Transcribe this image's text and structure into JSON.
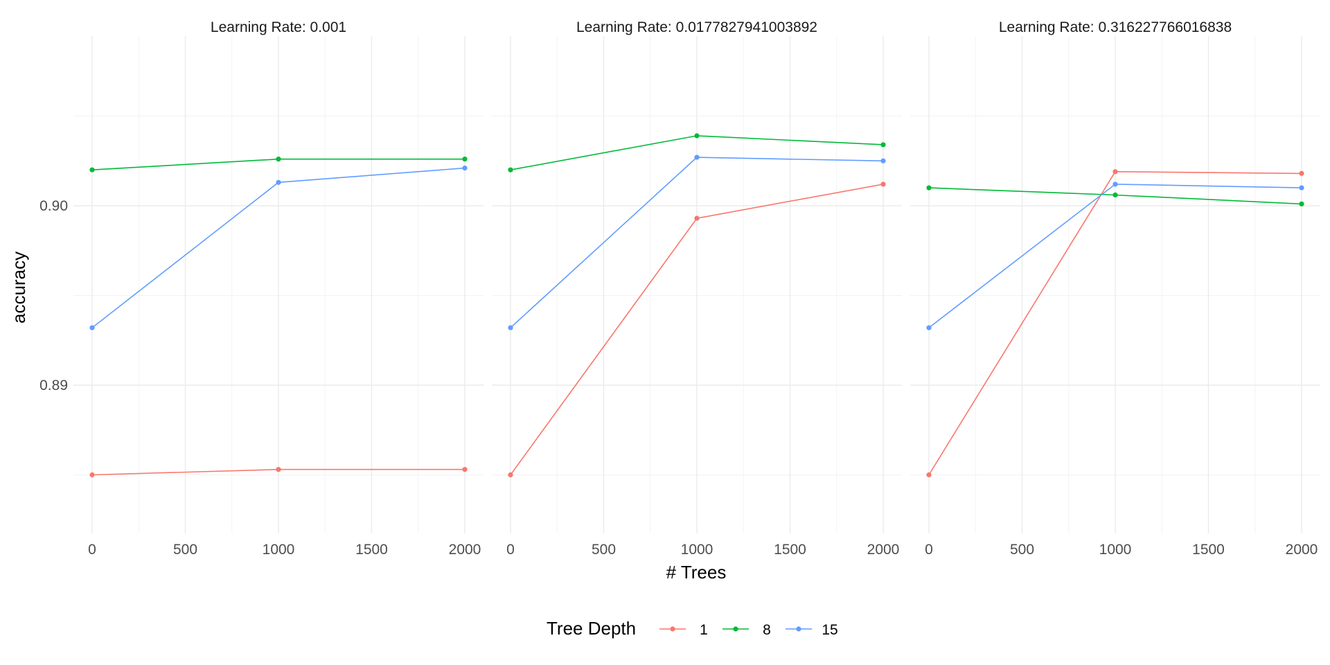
{
  "chart_data": {
    "type": "line",
    "facet_label_prefix": "Learning Rate: ",
    "xlabel": "# Trees",
    "ylabel": "accuracy",
    "legend_title": "Tree Depth",
    "legend_position": "bottom",
    "grid": true,
    "xlim": [
      -100,
      2100
    ],
    "ylim": [
      0.8842,
      0.9029
    ],
    "x_ticks": [
      0,
      500,
      1000,
      1500,
      2000
    ],
    "y_ticks": [
      0.89,
      0.9
    ],
    "y_tick_labels": [
      "0.89",
      "0.90"
    ],
    "series_meta": [
      {
        "name": "1",
        "color": "#F8766D"
      },
      {
        "name": "8",
        "color": "#00BA38"
      },
      {
        "name": "15",
        "color": "#619CFF"
      }
    ],
    "facets": [
      {
        "label": "0.001",
        "series": [
          {
            "name": "1",
            "x": [
              0,
              1000,
              2000
            ],
            "y": [
              0.885,
              0.8853,
              0.8853
            ]
          },
          {
            "name": "8",
            "x": [
              0,
              1000,
              2000
            ],
            "y": [
              0.902,
              0.9026,
              0.9026
            ]
          },
          {
            "name": "15",
            "x": [
              0,
              1000,
              2000
            ],
            "y": [
              0.8932,
              0.9013,
              0.9021
            ]
          }
        ]
      },
      {
        "label": "0.0177827941003892",
        "series": [
          {
            "name": "1",
            "x": [
              0,
              1000,
              2000
            ],
            "y": [
              0.885,
              0.8993,
              0.9012
            ]
          },
          {
            "name": "8",
            "x": [
              0,
              1000,
              2000
            ],
            "y": [
              0.902,
              0.9039,
              0.9034
            ]
          },
          {
            "name": "15",
            "x": [
              0,
              1000,
              2000
            ],
            "y": [
              0.8932,
              0.9027,
              0.9025
            ]
          }
        ]
      },
      {
        "label": "0.316227766016838",
        "series": [
          {
            "name": "1",
            "x": [
              0,
              1000,
              2000
            ],
            "y": [
              0.885,
              0.9019,
              0.9018
            ]
          },
          {
            "name": "8",
            "x": [
              0,
              1000,
              2000
            ],
            "y": [
              0.901,
              0.9006,
              0.9001
            ]
          },
          {
            "name": "15",
            "x": [
              0,
              1000,
              2000
            ],
            "y": [
              0.8932,
              0.9012,
              0.901
            ]
          }
        ]
      }
    ]
  }
}
